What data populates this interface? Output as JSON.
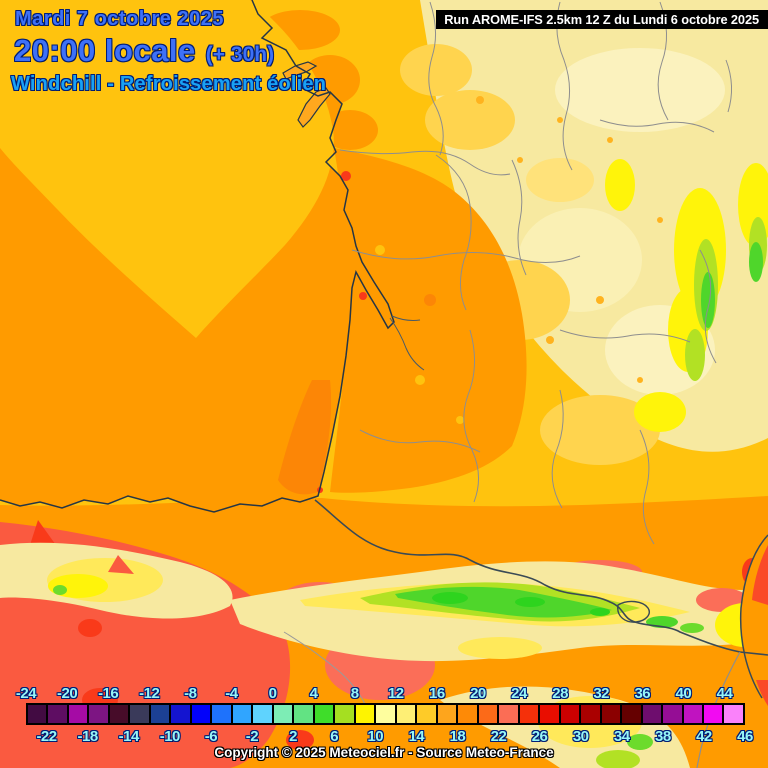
{
  "header": {
    "date": "Mardi 7 octobre 2025",
    "time": "20:00 locale",
    "offset": "(+ 30h)",
    "variable": "Windchill - Refroissement éolien",
    "run": "Run AROME-IFS 2.5km 12 Z du Lundi 6 octobre 2025",
    "date_time_color": "#3E71F7",
    "variable_color": "#19A1F4"
  },
  "map": {
    "colors": {
      "ocean_orange": "#FF9B00",
      "ocean_gold_patch": "#FFC30E",
      "land_gold": "#FFC30E",
      "pale_yellow": "#F7E9A0",
      "light_yellow": "#FFE95A",
      "bright_yellow": "#FFF40A",
      "chartreuse": "#B2E124",
      "green": "#4FD62B",
      "orange": "#FF9B00",
      "deep_orange": "#FC8606",
      "red_orange": "#FA5A40",
      "salmon": "#FB6E58",
      "red_spot": "#F93A1A",
      "coastline": "#263645",
      "border_country": "#3A4A55",
      "border_department": "#8E8E8E"
    }
  },
  "colorbar": {
    "label_color": "#97F6F6",
    "labels": [
      -24,
      -22,
      -20,
      -18,
      -16,
      -14,
      -12,
      -10,
      -8,
      -6,
      -4,
      -2,
      0,
      2,
      4,
      6,
      8,
      10,
      12,
      14,
      16,
      18,
      20,
      22,
      24,
      26,
      28,
      30,
      32,
      34,
      36,
      38,
      40,
      42,
      44,
      46
    ],
    "cells": [
      "#420B42",
      "#5E0D62",
      "#A50BA5",
      "#7D1583",
      "#470C29",
      "#3A3A5A",
      "#1C4094",
      "#1414D0",
      "#0202FA",
      "#1E72FC",
      "#30A5FF",
      "#5FD3FE",
      "#7DEDB5",
      "#62E383",
      "#3FDD2A",
      "#A5DF21",
      "#FEF400",
      "#FEFE9E",
      "#FEEF75",
      "#FECB28",
      "#FEA51C",
      "#FE8A06",
      "#FC6A18",
      "#FB6D55",
      "#F5300A",
      "#E90D00",
      "#CB0000",
      "#AA0000",
      "#8B0000",
      "#650000",
      "#6E0D6E",
      "#950D95",
      "#C013C0",
      "#F20AF2",
      "#FA82FA"
    ]
  },
  "footer": {
    "copyright": "Copyright © 2025 Meteociel.fr - Source Meteo-France"
  }
}
